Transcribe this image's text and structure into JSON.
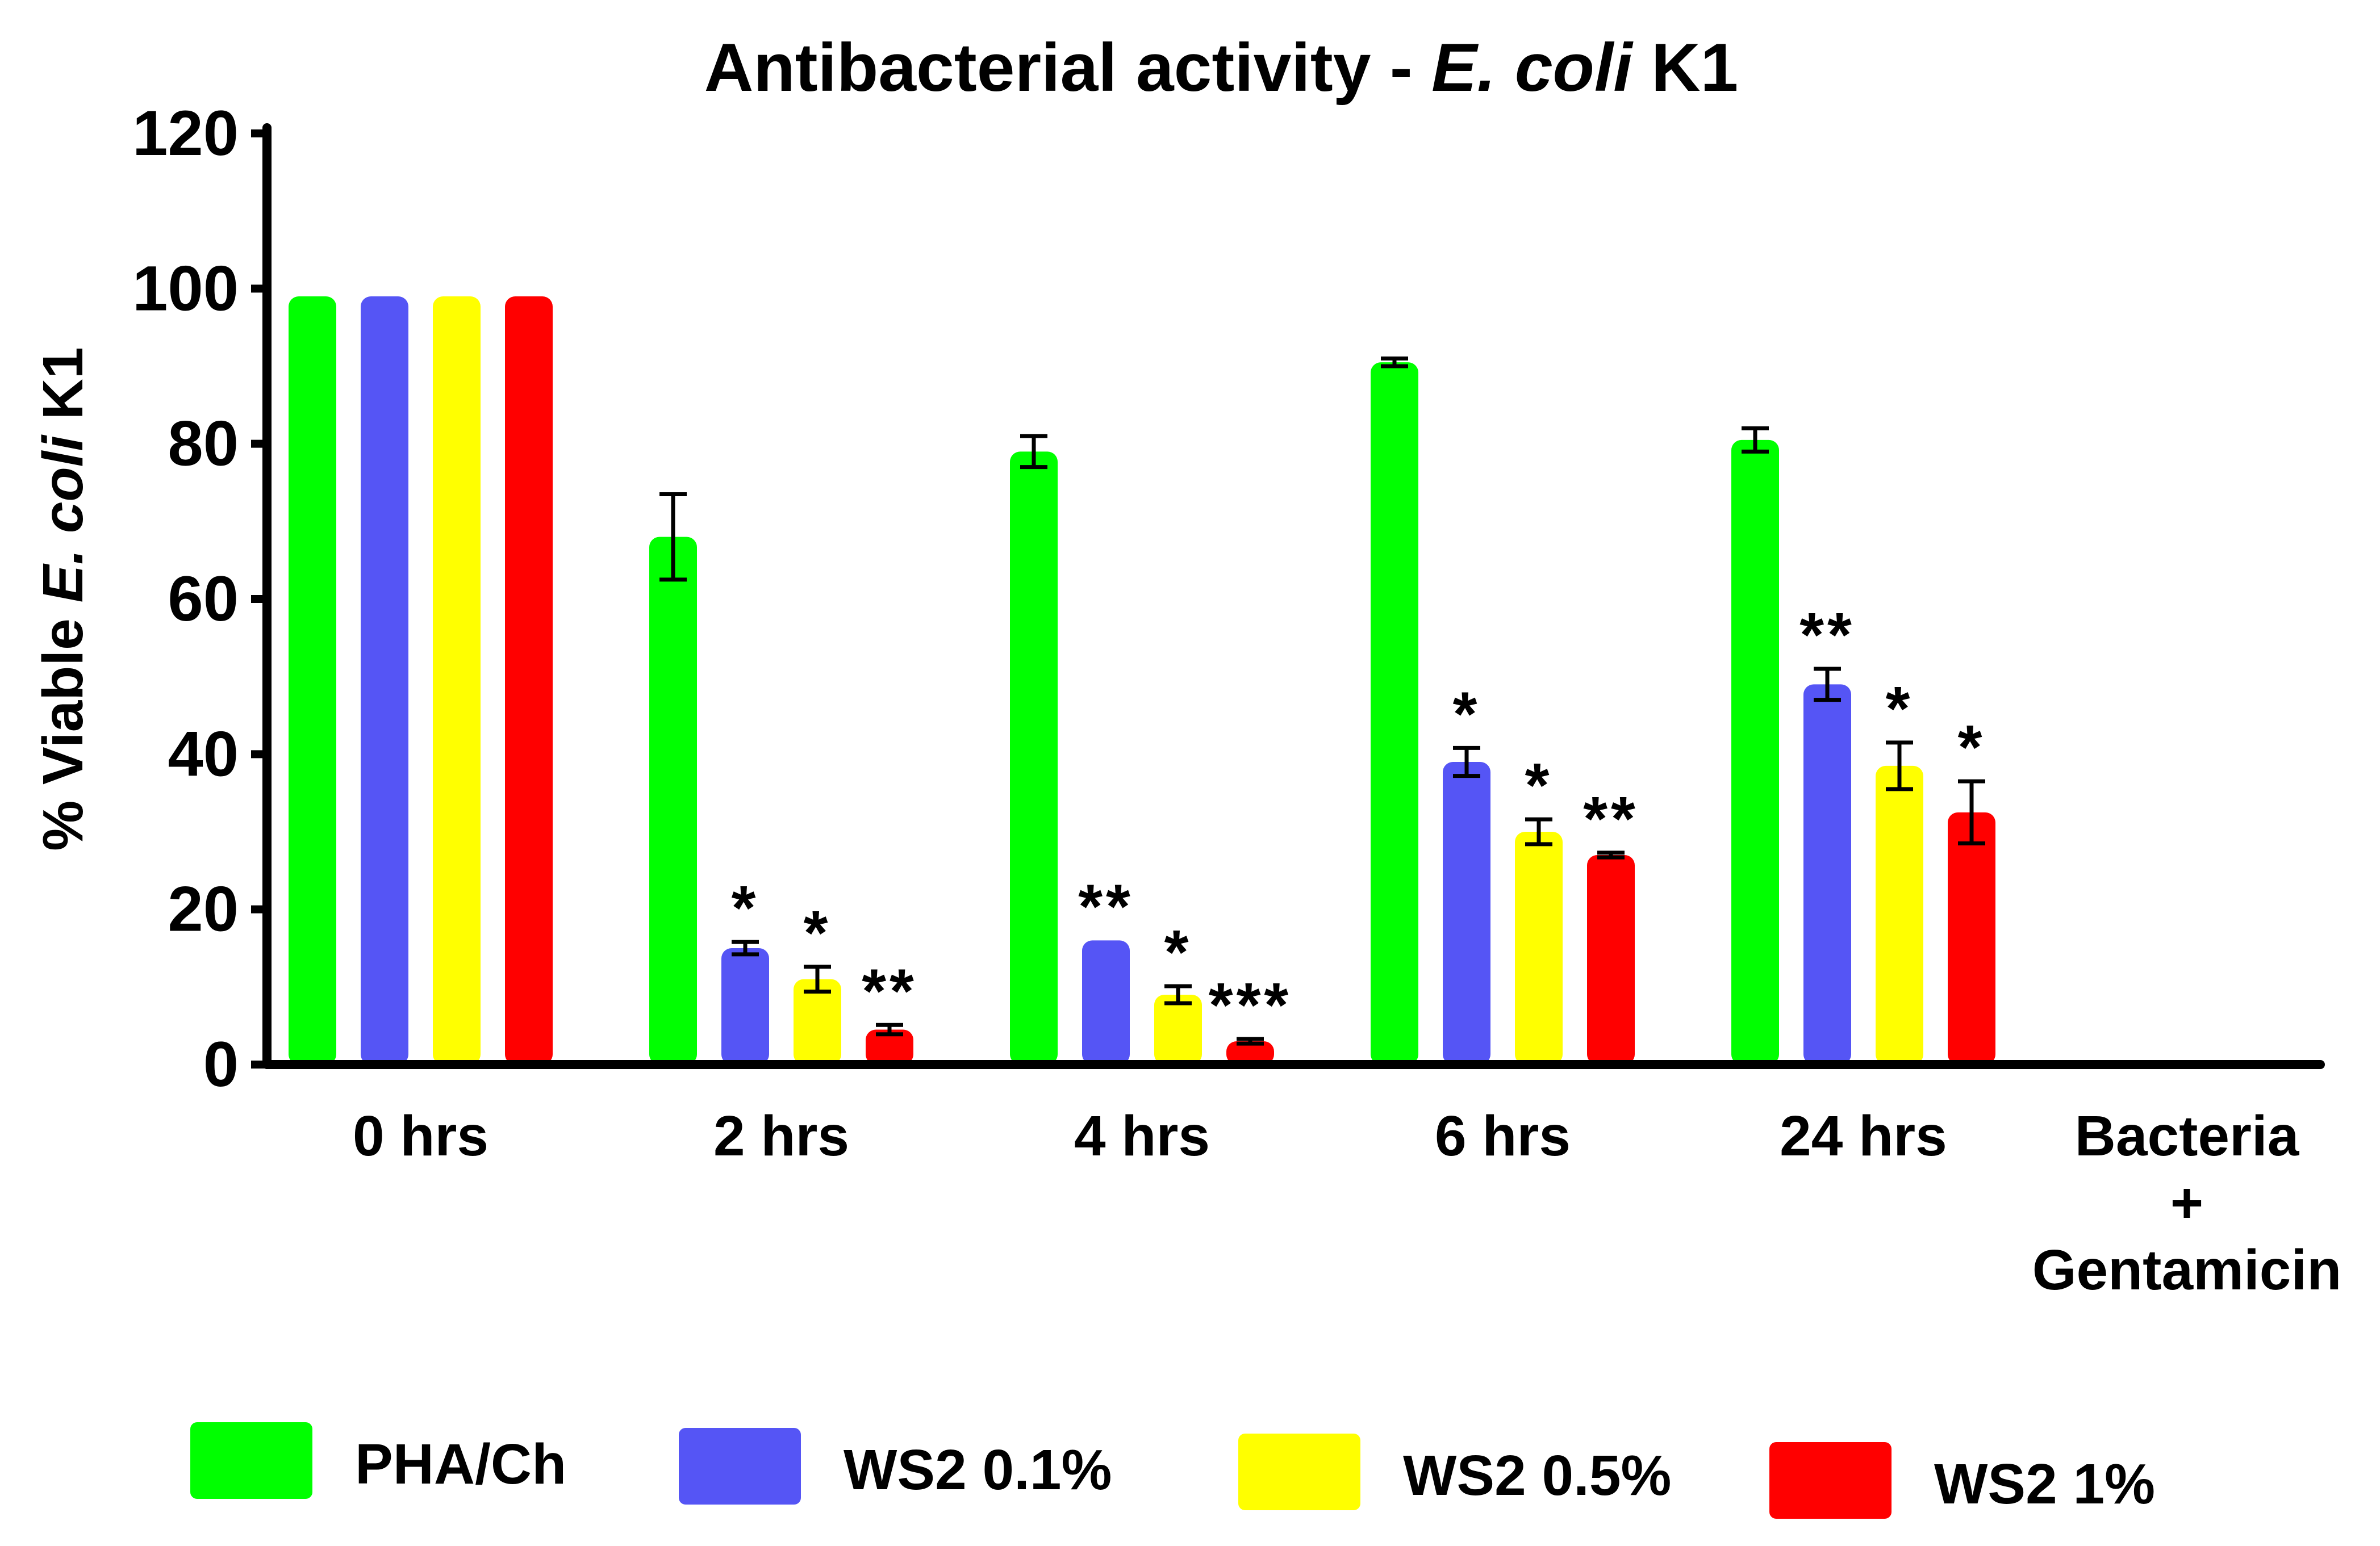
{
  "chart_data": {
    "type": "bar",
    "title_parts": [
      "Antibacterial activity - ",
      "E. coli",
      " K1"
    ],
    "title": "Antibacterial activity - E. coli K1",
    "ylabel_parts": [
      "% Viable ",
      "E. coli",
      " K1"
    ],
    "ylabel": "% Viable E. coli K1",
    "xlabel": "",
    "ylim": [
      0,
      120
    ],
    "yticks": [
      "0",
      "20",
      "40",
      "60",
      "80",
      "100",
      "120"
    ],
    "categories": [
      {
        "lines": [
          "0 hrs"
        ]
      },
      {
        "lines": [
          "2 hrs"
        ]
      },
      {
        "lines": [
          "4 hrs"
        ]
      },
      {
        "lines": [
          "6 hrs"
        ]
      },
      {
        "lines": [
          "24 hrs"
        ]
      },
      {
        "lines": [
          "Bacteria",
          "+",
          "Gentamicin"
        ]
      }
    ],
    "legend_position": "bottom",
    "series": [
      {
        "name": "PHA/Ch",
        "color": "#00ff00",
        "values": [
          99,
          68,
          79,
          90.5,
          80.5,
          null
        ],
        "errors": [
          0,
          5.5,
          2,
          0.5,
          1.5,
          null
        ],
        "sig": [
          "",
          "",
          "",
          "",
          "",
          ""
        ]
      },
      {
        "name": "WS2 0.1%",
        "color": "#5555f5",
        "values": [
          99,
          15,
          16,
          39,
          49,
          null
        ],
        "errors": [
          0,
          0.8,
          0,
          1.8,
          2,
          null
        ],
        "sig": [
          "",
          "*",
          "**",
          "*",
          "**",
          ""
        ]
      },
      {
        "name": "WS2 0.5%",
        "color": "#ffff00",
        "values": [
          99,
          11,
          9,
          30,
          38.5,
          null
        ],
        "errors": [
          0,
          1.6,
          1.1,
          1.6,
          3,
          null
        ],
        "sig": [
          "",
          "*",
          "*",
          "*",
          "*",
          ""
        ]
      },
      {
        "name": "WS2 1%",
        "color": "#ff0000",
        "values": [
          99,
          4.5,
          3,
          27,
          32.5,
          null
        ],
        "errors": [
          0,
          0.6,
          0.3,
          0.3,
          4,
          null
        ],
        "sig": [
          "",
          "**",
          "***",
          "**",
          "*",
          ""
        ]
      }
    ]
  }
}
